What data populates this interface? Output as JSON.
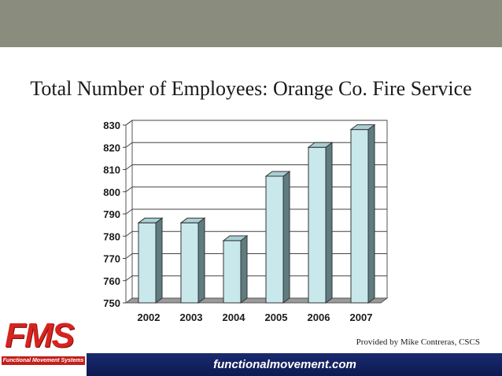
{
  "slide": {
    "title": "Total Number of Employees: Orange Co. Fire Service",
    "credit": "Provided by Mike Contreras, CSCS",
    "footer_link": "functionalmovement.com"
  },
  "logo": {
    "letters": "FMS",
    "tagline": "Functional Movement Systems"
  },
  "colors": {
    "top_bar": "#8a8c7e",
    "bar_front": "#c8e8ec",
    "bar_side": "#5f7c80",
    "bar_top": "#a9cfd4",
    "footer": "#1a2a6e",
    "logo_red": "#d8231f"
  },
  "chart_data": {
    "type": "bar",
    "categories": [
      "2002",
      "2003",
      "2004",
      "2005",
      "2006",
      "2007"
    ],
    "values": [
      786,
      786,
      778,
      807,
      820,
      828
    ],
    "title": "Total Number of Employees: Orange Co. Fire Service",
    "xlabel": "",
    "ylabel": "",
    "ylim": [
      750,
      830
    ],
    "yticks": [
      750,
      760,
      770,
      780,
      790,
      800,
      810,
      820,
      830
    ],
    "grid": true,
    "legend": "none",
    "style": "3d"
  }
}
